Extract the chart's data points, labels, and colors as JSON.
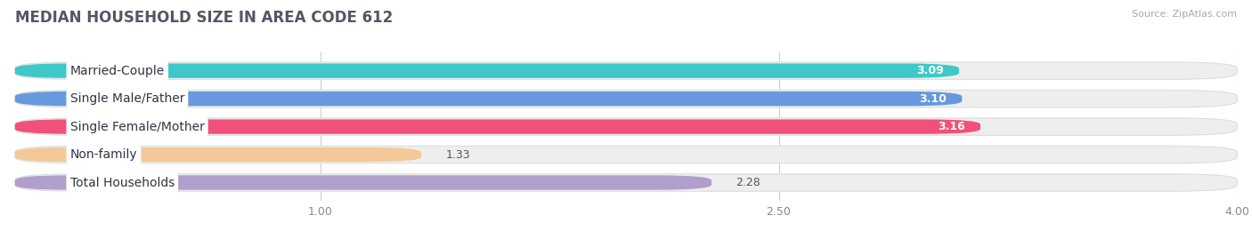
{
  "title": "MEDIAN HOUSEHOLD SIZE IN AREA CODE 612",
  "source": "Source: ZipAtlas.com",
  "categories": [
    "Married-Couple",
    "Single Male/Father",
    "Single Female/Mother",
    "Non-family",
    "Total Households"
  ],
  "values": [
    3.09,
    3.1,
    3.16,
    1.33,
    2.28
  ],
  "bar_colors": [
    "#3ec8c8",
    "#6699dd",
    "#f0507a",
    "#f5c897",
    "#b09fcc"
  ],
  "track_color": "#eeeeee",
  "track_border_color": "#dddddd",
  "xlim": [
    0,
    4.0
  ],
  "xmin": 0,
  "xticks": [
    1.0,
    2.5,
    4.0
  ],
  "label_fontsize": 10,
  "value_fontsize": 9,
  "title_fontsize": 12,
  "background_color": "#ffffff",
  "title_color": "#555566",
  "source_color": "#aaaaaa"
}
